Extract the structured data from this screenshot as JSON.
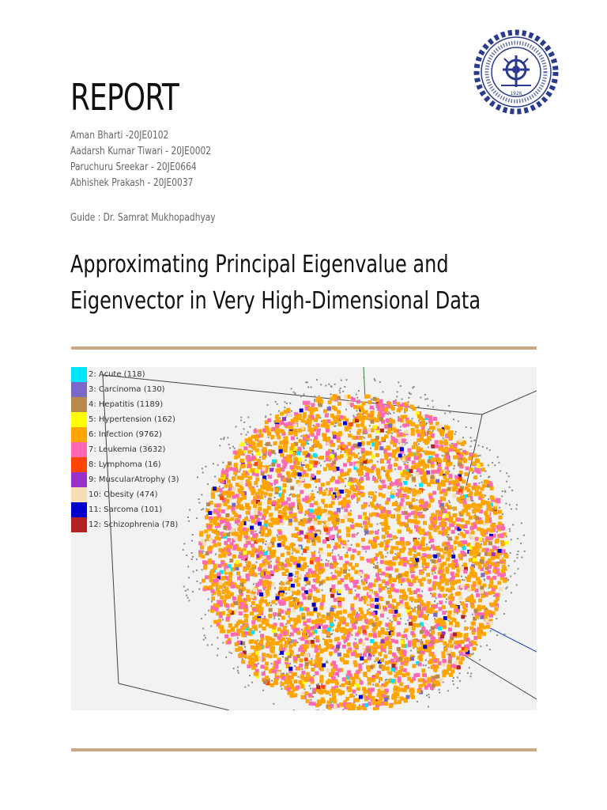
{
  "report_title": "REPORT",
  "authors": [
    "Aman Bharti -20JE0102",
    "Aadarsh Kumar Tiwari - 20JE0002",
    "Paruchuru Sreekar - 20JE0664",
    "Abhishek Prakash - 20JE0037"
  ],
  "guide": "Guide : Dr. Samrat Mukhopadhyay",
  "project_title_line1": "Approximating Principal Eigenvalue and",
  "project_title_line2": "Eigenvector in Very High-Dimensional Data",
  "logo": {
    "icon": "iit-dhanbad-seal-icon",
    "year": "1926",
    "color": "#2a3a8c"
  },
  "accent_color": "#c9a985",
  "figure": {
    "legend": [
      {
        "label": "2: Acute (118)",
        "color": "#00e5ff"
      },
      {
        "label": "3: Carcinoma (130)",
        "color": "#7b68c9"
      },
      {
        "label": "4: Hepatitis (1189)",
        "color": "#b8884c"
      },
      {
        "label": "5: Hypertension (162)",
        "color": "#ffff00"
      },
      {
        "label": "6: Infection (9762)",
        "color": "#ffa500"
      },
      {
        "label": "7: Leukemia (3632)",
        "color": "#ff69b4"
      },
      {
        "label": "8: Lymphoma (16)",
        "color": "#ff4500"
      },
      {
        "label": "9: MuscularAtrophy (3)",
        "color": "#9932cc"
      },
      {
        "label": "10: Obesity (474)",
        "color": "#f5deb3"
      },
      {
        "label": "11: Sarcoma (101)",
        "color": "#0000cd"
      },
      {
        "label": "12: Schizophrenia (78)",
        "color": "#b22222"
      }
    ]
  }
}
